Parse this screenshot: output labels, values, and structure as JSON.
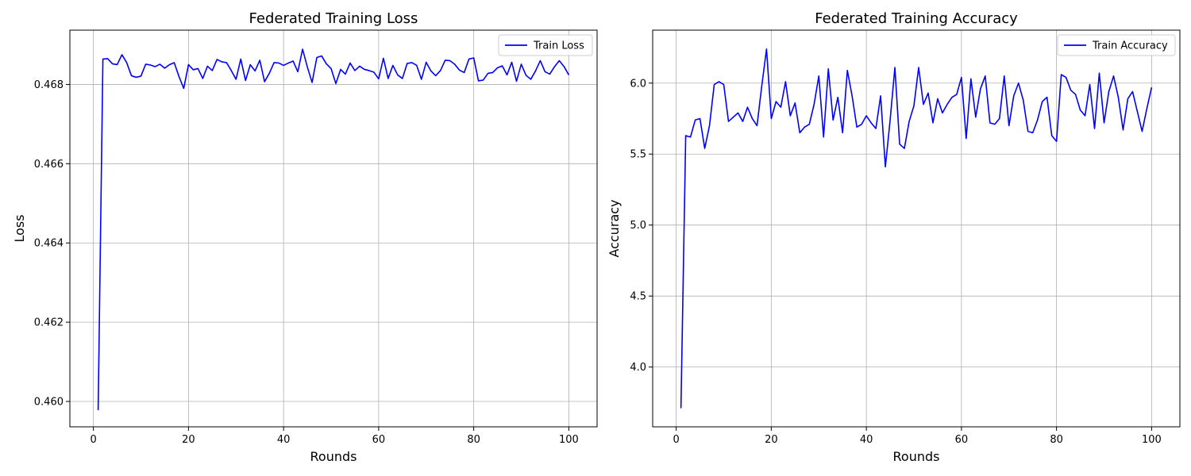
{
  "chart_data": [
    {
      "type": "line",
      "title": "Federated Training Loss",
      "xlabel": "Rounds",
      "ylabel": "Loss",
      "grid": true,
      "legend_placement": "top-right",
      "line_color": "#0000ff",
      "xlim": [
        -4.95,
        105.95
      ],
      "ylim": [
        0.45936,
        0.46937
      ],
      "xticks": [
        0,
        20,
        40,
        60,
        80,
        100
      ],
      "xtick_labels": [
        "0",
        "20",
        "40",
        "60",
        "80",
        "100"
      ],
      "yticks": [
        0.46,
        0.462,
        0.464,
        0.466,
        0.468
      ],
      "ytick_labels": [
        "0.460",
        "0.462",
        "0.464",
        "0.466",
        "0.468"
      ],
      "series": [
        {
          "name": "Train Loss",
          "x": [
            1,
            2,
            3,
            4,
            5,
            6,
            7,
            8,
            9,
            10,
            11,
            12,
            13,
            14,
            15,
            16,
            17,
            18,
            19,
            20,
            21,
            22,
            23,
            24,
            25,
            26,
            27,
            28,
            29,
            30,
            31,
            32,
            33,
            34,
            35,
            36,
            37,
            38,
            39,
            40,
            41,
            42,
            43,
            44,
            45,
            46,
            47,
            48,
            49,
            50,
            51,
            52,
            53,
            54,
            55,
            56,
            57,
            58,
            59,
            60,
            61,
            62,
            63,
            64,
            65,
            66,
            67,
            68,
            69,
            70,
            71,
            72,
            73,
            74,
            75,
            76,
            77,
            78,
            79,
            80,
            81,
            82,
            83,
            84,
            85,
            86,
            87,
            88,
            89,
            90,
            91,
            92,
            93,
            94,
            95,
            96,
            97,
            98,
            99,
            100
          ],
          "y": [
            0.45978,
            0.46864,
            0.46865,
            0.46852,
            0.4685,
            0.46875,
            0.46855,
            0.46822,
            0.46818,
            0.46821,
            0.46851,
            0.46849,
            0.46845,
            0.46851,
            0.46841,
            0.4685,
            0.46855,
            0.4682,
            0.4679,
            0.4685,
            0.46837,
            0.4684,
            0.46815,
            0.46846,
            0.46835,
            0.46863,
            0.46857,
            0.46855,
            0.46835,
            0.46813,
            0.46864,
            0.4681,
            0.4685,
            0.46834,
            0.46861,
            0.46807,
            0.46828,
            0.46855,
            0.46854,
            0.46848,
            0.46854,
            0.46859,
            0.46832,
            0.46889,
            0.46844,
            0.46805,
            0.46868,
            0.46872,
            0.46852,
            0.4684,
            0.46802,
            0.46838,
            0.46826,
            0.46854,
            0.46835,
            0.46846,
            0.46838,
            0.46835,
            0.46831,
            0.46814,
            0.46866,
            0.46815,
            0.46848,
            0.46824,
            0.46815,
            0.46853,
            0.46855,
            0.46848,
            0.46813,
            0.46856,
            0.46834,
            0.46822,
            0.46835,
            0.46861,
            0.4686,
            0.46851,
            0.46836,
            0.4683,
            0.46864,
            0.46867,
            0.46809,
            0.46811,
            0.46828,
            0.4683,
            0.46842,
            0.46847,
            0.46824,
            0.46856,
            0.46808,
            0.46851,
            0.46823,
            0.46813,
            0.46834,
            0.4686,
            0.46832,
            0.46826,
            0.46845,
            0.4686,
            0.46845,
            0.46824
          ]
        }
      ]
    },
    {
      "type": "line",
      "title": "Federated Training Accuracy",
      "xlabel": "Rounds",
      "ylabel": "Accuracy",
      "grid": true,
      "legend_placement": "top-right",
      "line_color": "#0000ff",
      "xlim": [
        -4.95,
        105.95
      ],
      "ylim": [
        3.579,
        6.373
      ],
      "xticks": [
        0,
        20,
        40,
        60,
        80,
        100
      ],
      "xtick_labels": [
        "0",
        "20",
        "40",
        "60",
        "80",
        "100"
      ],
      "yticks": [
        4.0,
        4.5,
        5.0,
        5.5,
        6.0
      ],
      "ytick_labels": [
        "4.0",
        "4.5",
        "5.0",
        "5.5",
        "6.0"
      ],
      "series": [
        {
          "name": "Train Accuracy",
          "x": [
            1,
            2,
            3,
            4,
            5,
            6,
            7,
            8,
            9,
            10,
            11,
            12,
            13,
            14,
            15,
            16,
            17,
            18,
            19,
            20,
            21,
            22,
            23,
            24,
            25,
            26,
            27,
            28,
            29,
            30,
            31,
            32,
            33,
            34,
            35,
            36,
            37,
            38,
            39,
            40,
            41,
            42,
            43,
            44,
            45,
            46,
            47,
            48,
            49,
            50,
            51,
            52,
            53,
            54,
            55,
            56,
            57,
            58,
            59,
            60,
            61,
            62,
            63,
            64,
            65,
            66,
            67,
            68,
            69,
            70,
            71,
            72,
            73,
            74,
            75,
            76,
            77,
            78,
            79,
            80,
            81,
            82,
            83,
            84,
            85,
            86,
            87,
            88,
            89,
            90,
            91,
            92,
            93,
            94,
            95,
            96,
            97,
            98,
            99,
            100
          ],
          "y": [
            3.71,
            5.63,
            5.62,
            5.74,
            5.75,
            5.54,
            5.7,
            5.99,
            6.01,
            5.99,
            5.73,
            5.76,
            5.79,
            5.73,
            5.83,
            5.75,
            5.7,
            5.98,
            6.24,
            5.75,
            5.87,
            5.83,
            6.01,
            5.77,
            5.86,
            5.65,
            5.69,
            5.71,
            5.85,
            6.05,
            5.62,
            6.1,
            5.74,
            5.9,
            5.65,
            6.09,
            5.91,
            5.69,
            5.71,
            5.77,
            5.72,
            5.68,
            5.91,
            5.41,
            5.74,
            6.11,
            5.57,
            5.54,
            5.73,
            5.84,
            6.11,
            5.85,
            5.93,
            5.72,
            5.89,
            5.79,
            5.85,
            5.9,
            5.92,
            6.04,
            5.61,
            6.03,
            5.76,
            5.96,
            6.05,
            5.72,
            5.71,
            5.75,
            6.05,
            5.7,
            5.91,
            6.0,
            5.88,
            5.66,
            5.65,
            5.74,
            5.87,
            5.9,
            5.63,
            5.59,
            6.06,
            6.04,
            5.95,
            5.92,
            5.81,
            5.77,
            5.99,
            5.68,
            6.07,
            5.72,
            5.94,
            6.05,
            5.9,
            5.67,
            5.89,
            5.94,
            5.8,
            5.66,
            5.82,
            5.97
          ]
        }
      ]
    }
  ]
}
